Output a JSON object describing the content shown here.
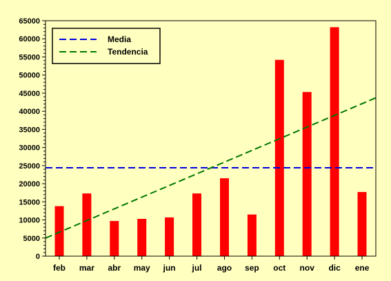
{
  "chart_data": {
    "type": "bar",
    "categories": [
      "feb",
      "mar",
      "abr",
      "may",
      "jun",
      "jul",
      "ago",
      "sep",
      "oct",
      "nov",
      "dic",
      "ene"
    ],
    "series": [
      {
        "values": [
          13800,
          17300,
          9700,
          10300,
          10700,
          17300,
          21500,
          11500,
          54200,
          45300,
          63200,
          17700
        ],
        "color": "#ff0000"
      }
    ],
    "reference_lines": [
      {
        "name": "Media",
        "type": "horizontal",
        "value": 24400,
        "color": "#0000dd",
        "style": "dashed"
      },
      {
        "name": "Tendencia",
        "type": "trend",
        "start": 5000,
        "end": 43700,
        "color": "#007700",
        "style": "dashed"
      }
    ],
    "ylim": [
      0,
      65000
    ],
    "y_ticks": [
      "0",
      "5000",
      "10000",
      "15000",
      "20000",
      "25000",
      "30000",
      "35000",
      "40000",
      "45000",
      "50000",
      "55000",
      "60000",
      "65000"
    ],
    "y_minor_step": 1000,
    "legend_position": "top-left",
    "background": "#ffffc0",
    "grid": false
  }
}
